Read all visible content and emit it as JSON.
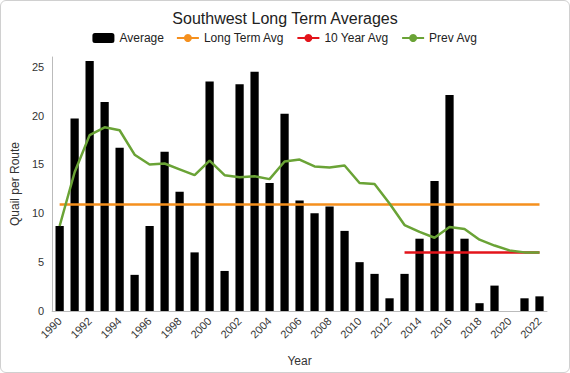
{
  "chart_data": {
    "type": "bar",
    "title": "Southwest Long Term Averages",
    "x_label": "Year",
    "y_label": "Quail per Route",
    "categories": [
      "1990",
      null,
      "1992",
      null,
      "1994",
      null,
      "1996",
      null,
      "1998",
      null,
      "2000",
      null,
      "2002",
      null,
      "2004",
      null,
      "2006",
      null,
      "2008",
      null,
      "2010",
      null,
      "2012",
      null,
      "2014",
      null,
      "2016",
      null,
      "2018",
      null,
      "2020",
      null,
      "2022"
    ],
    "series": [
      {
        "name": "Average",
        "type": "bar",
        "color": "#000000",
        "values": [
          8.7,
          19.7,
          25.6,
          21.4,
          16.7,
          3.7,
          8.7,
          16.3,
          12.2,
          6.0,
          23.5,
          4.1,
          23.2,
          24.5,
          13.1,
          20.2,
          11.3,
          10.0,
          10.7,
          8.2,
          5.0,
          3.8,
          1.3,
          3.8,
          7.4,
          13.3,
          22.1,
          7.4,
          0.8,
          2.6,
          null,
          1.3,
          1.5
        ]
      },
      {
        "name": "Long Term Avg",
        "type": "line",
        "color": "#f5901e",
        "values": [
          10.9,
          10.9,
          10.9,
          10.9,
          10.9,
          10.9,
          10.9,
          10.9,
          10.9,
          10.9,
          10.9,
          10.9,
          10.9,
          10.9,
          10.9,
          10.9,
          10.9,
          10.9,
          10.9,
          10.9,
          10.9,
          10.9,
          10.9,
          10.9,
          10.9,
          10.9,
          10.9,
          10.9,
          10.9,
          10.9,
          10.9,
          10.9,
          10.9
        ]
      },
      {
        "name": "10 Year Avg",
        "type": "line",
        "color": "#e3141b",
        "values": [
          null,
          null,
          null,
          null,
          null,
          null,
          null,
          null,
          null,
          null,
          null,
          null,
          null,
          null,
          null,
          null,
          null,
          null,
          null,
          null,
          null,
          null,
          null,
          6.0,
          6.0,
          6.0,
          6.0,
          6.0,
          6.0,
          6.0,
          6.0,
          6.0,
          6.0
        ]
      },
      {
        "name": "Prev Avg",
        "type": "line",
        "color": "#6aa336",
        "values": [
          8.7,
          14.2,
          18.0,
          18.8,
          18.5,
          16.0,
          15.0,
          15.1,
          14.5,
          13.9,
          15.4,
          13.9,
          13.7,
          13.8,
          13.5,
          15.3,
          15.5,
          14.8,
          14.7,
          14.9,
          13.1,
          13.0,
          11.0,
          8.8,
          8.1,
          7.5,
          8.6,
          8.4,
          7.3,
          6.7,
          6.2,
          6.0,
          6.0
        ]
      }
    ],
    "ylim": [
      0,
      26
    ],
    "yticks": [
      0,
      5,
      10,
      15,
      20,
      25
    ],
    "grid": false,
    "legend": "top"
  }
}
